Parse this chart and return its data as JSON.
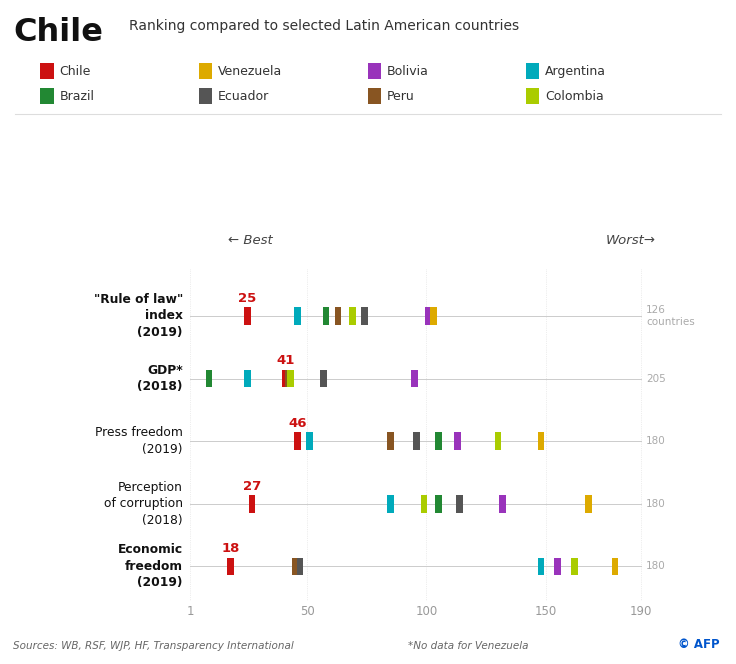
{
  "background_color": "#ffffff",
  "colors": {
    "Chile": "#cc1111",
    "Venezuela": "#ddaa00",
    "Bolivia": "#9933bb",
    "Argentina": "#00aabb",
    "Brazil": "#228833",
    "Ecuador": "#555555",
    "Peru": "#885522",
    "Colombia": "#aacc00"
  },
  "indicators": [
    {
      "label": "\"Rule of law\"\nindex\n(2019)",
      "bold": true,
      "max_label": "126\ncountries",
      "max_val": 126,
      "chile_rank": 25,
      "data": [
        [
          "Chile",
          25
        ],
        [
          "Argentina",
          46
        ],
        [
          "Brazil",
          58
        ],
        [
          "Peru",
          63
        ],
        [
          "Colombia",
          69
        ],
        [
          "Ecuador",
          74
        ],
        [
          "Bolivia",
          101
        ],
        [
          "Venezuela",
          103
        ]
      ]
    },
    {
      "label": "GDP*\n(2018)",
      "bold": true,
      "max_label": "205",
      "max_val": 205,
      "chile_rank": 41,
      "data": [
        [
          "Brazil",
          9
        ],
        [
          "Argentina",
          25
        ],
        [
          "Chile",
          41
        ],
        [
          "Peru",
          42
        ],
        [
          "Colombia",
          43
        ],
        [
          "Ecuador",
          57
        ],
        [
          "Bolivia",
          95
        ]
      ]
    },
    {
      "label": "Press freedom\n(2019)",
      "bold": false,
      "max_label": "180",
      "max_val": 180,
      "chile_rank": 46,
      "data": [
        [
          "Chile",
          46
        ],
        [
          "Argentina",
          51
        ],
        [
          "Peru",
          85
        ],
        [
          "Ecuador",
          96
        ],
        [
          "Brazil",
          105
        ],
        [
          "Bolivia",
          113
        ],
        [
          "Colombia",
          130
        ],
        [
          "Venezuela",
          148
        ]
      ]
    },
    {
      "label": "Perception\nof corruption\n(2018)",
      "bold": false,
      "max_label": "180",
      "max_val": 180,
      "chile_rank": 27,
      "data": [
        [
          "Chile",
          27
        ],
        [
          "Argentina",
          85
        ],
        [
          "Colombia",
          99
        ],
        [
          "Brazil",
          105
        ],
        [
          "Ecuador",
          114
        ],
        [
          "Bolivia",
          132
        ],
        [
          "Venezuela",
          168
        ]
      ]
    },
    {
      "label": "Economic\nfreedom\n(2019)",
      "bold": true,
      "max_label": "180",
      "max_val": 180,
      "chile_rank": 18,
      "data": [
        [
          "Chile",
          18
        ],
        [
          "Peru",
          45
        ],
        [
          "Ecuador",
          47
        ],
        [
          "Argentina",
          148
        ],
        [
          "Bolivia",
          155
        ],
        [
          "Colombia",
          162
        ],
        [
          "Venezuela",
          179
        ]
      ]
    }
  ],
  "xmin": 1,
  "xmax": 190,
  "xticks": [
    1,
    50,
    100,
    150,
    190
  ],
  "title_main": "Chile",
  "title_sub": "Ranking compared to selected Latin American countries",
  "legend_row1": [
    [
      "Chile",
      "#cc1111"
    ],
    [
      "Venezuela",
      "#ddaa00"
    ],
    [
      "Bolivia",
      "#9933bb"
    ],
    [
      "Argentina",
      "#00aabb"
    ]
  ],
  "legend_row2": [
    [
      "Brazil",
      "#228833"
    ],
    [
      "Ecuador",
      "#555555"
    ],
    [
      "Peru",
      "#885522"
    ],
    [
      "Colombia",
      "#aacc00"
    ]
  ],
  "footer_left": "Sources: WB, RSF, WJP, HF, Transparency International",
  "footer_mid": "*No data for Venezuela",
  "footer_right": "© AFP"
}
